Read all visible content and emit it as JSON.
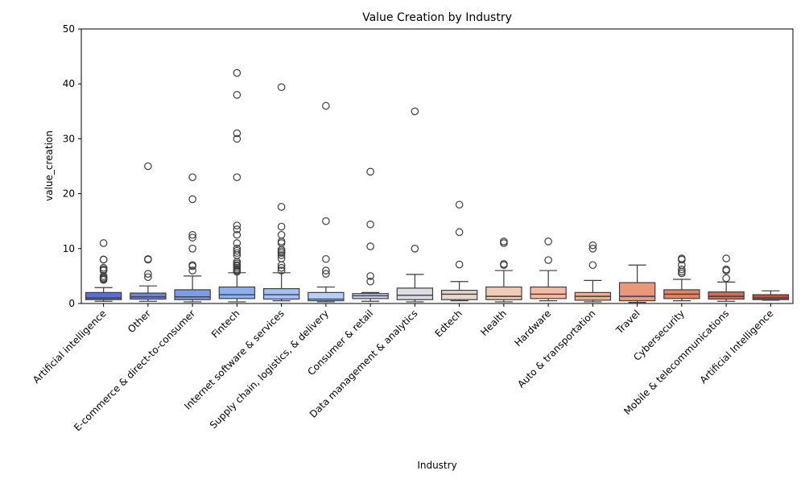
{
  "chart_data": {
    "type": "box",
    "title": "Value Creation by Industry",
    "xlabel": "Industry",
    "ylabel": "value_creation",
    "ylim": [
      0,
      50
    ],
    "yticks": [
      0,
      10,
      20,
      30,
      40,
      50
    ],
    "grid": false,
    "legend": "none",
    "series": [
      {
        "category": "Artificial intelligence",
        "color": "#5a6fcf",
        "whisker_low": 0.4,
        "q1": 0.7,
        "median": 1.0,
        "q3": 2.0,
        "whisker_high": 2.9,
        "outliers": [
          11,
          8,
          8,
          6.5,
          6.2,
          6,
          5,
          4.7,
          4.5,
          4.3
        ]
      },
      {
        "category": "Other",
        "color": "#6a86df",
        "whisker_low": 0.4,
        "q1": 0.8,
        "median": 1.2,
        "q3": 1.9,
        "whisker_high": 3.2,
        "outliers": [
          25,
          8.1,
          8,
          5.4,
          4.8
        ]
      },
      {
        "category": "E-commerce & direct-to-consumer",
        "color": "#7b9ceb",
        "whisker_low": 0.3,
        "q1": 0.7,
        "median": 1.2,
        "q3": 2.5,
        "whisker_high": 5.0,
        "outliers": [
          23,
          19,
          12.5,
          12,
          10,
          7,
          6.8,
          6
        ]
      },
      {
        "category": "Fintech",
        "color": "#8eb0f4",
        "whisker_low": 0.3,
        "q1": 0.9,
        "median": 1.6,
        "q3": 3.0,
        "whisker_high": 5.6,
        "outliers": [
          42,
          38,
          31,
          30,
          23,
          14.2,
          13.5,
          12.5,
          11,
          10,
          9.6,
          9.2,
          8.8,
          7.6,
          7.3,
          7,
          6.8,
          6.5,
          6.2,
          6,
          5.8
        ]
      },
      {
        "category": "Internet software & services",
        "color": "#a3c0f8",
        "whisker_low": 0.5,
        "q1": 0.8,
        "median": 1.6,
        "q3": 2.7,
        "whisker_high": 5.6,
        "outliers": [
          39.4,
          17.6,
          14,
          12.5,
          11.3,
          11,
          9.8,
          9.5,
          9.2,
          8.8,
          8.2,
          7,
          6.5,
          6
        ]
      },
      {
        "category": "Supply chain, logistics, & delivery",
        "color": "#b8cff6",
        "whisker_low": 0.3,
        "q1": 0.5,
        "median": 0.8,
        "q3": 2.0,
        "whisker_high": 3.0,
        "outliers": [
          36,
          15,
          8.1,
          6,
          5.4
        ]
      },
      {
        "category": "Consumer & retail",
        "color": "#cbd6ee",
        "whisker_low": 0.4,
        "q1": 0.9,
        "median": 1.4,
        "q3": 1.8,
        "whisker_high": 2.0,
        "outliers": [
          24,
          14.4,
          10.4,
          5,
          4
        ]
      },
      {
        "category": "Data management & analytics",
        "color": "#dcdde2",
        "whisker_low": 0.3,
        "q1": 0.7,
        "median": 1.5,
        "q3": 2.8,
        "whisker_high": 5.3,
        "outliers": [
          35,
          10
        ]
      },
      {
        "category": "Edtech",
        "color": "#e9d6cd",
        "whisker_low": 0.5,
        "q1": 0.7,
        "median": 1.7,
        "q3": 2.4,
        "whisker_high": 4.0,
        "outliers": [
          18,
          13,
          7.1
        ]
      },
      {
        "category": "Health",
        "color": "#f2cab6",
        "whisker_low": 0.3,
        "q1": 0.7,
        "median": 1.3,
        "q3": 3.0,
        "whisker_high": 6.0,
        "outliers": [
          11.3,
          11,
          7.2,
          7
        ]
      },
      {
        "category": "Hardware",
        "color": "#f4bca3",
        "whisker_low": 0.5,
        "q1": 0.9,
        "median": 1.7,
        "q3": 3.0,
        "whisker_high": 6.0,
        "outliers": [
          11.3,
          7.9
        ]
      },
      {
        "category": "Auto & transportation",
        "color": "#f1ad92",
        "whisker_low": 0.3,
        "q1": 0.6,
        "median": 1.3,
        "q3": 2.0,
        "whisker_high": 4.2,
        "outliers": [
          10.6,
          10,
          7
        ]
      },
      {
        "category": "Travel",
        "color": "#e9987c",
        "whisker_low": 0.2,
        "q1": 0.5,
        "median": 1.3,
        "q3": 3.8,
        "whisker_high": 7.0,
        "outliers": []
      },
      {
        "category": "Cybersecurity",
        "color": "#df8468",
        "whisker_low": 0.5,
        "q1": 0.9,
        "median": 1.7,
        "q3": 2.5,
        "whisker_high": 4.4,
        "outliers": [
          8.2,
          8,
          7,
          6.2,
          5.8,
          5.5
        ]
      },
      {
        "category": "Mobile & telecommunications",
        "color": "#d16c55",
        "whisker_low": 0.4,
        "q1": 0.8,
        "median": 1.3,
        "q3": 2.1,
        "whisker_high": 3.9,
        "outliers": [
          8.2,
          6.2,
          6,
          4.6
        ]
      },
      {
        "category": "Artificial Intelligence",
        "color": "#c04f43",
        "whisker_low": 0.6,
        "q1": 0.7,
        "median": 1.0,
        "q3": 1.6,
        "whisker_high": 2.3,
        "outliers": []
      }
    ]
  }
}
